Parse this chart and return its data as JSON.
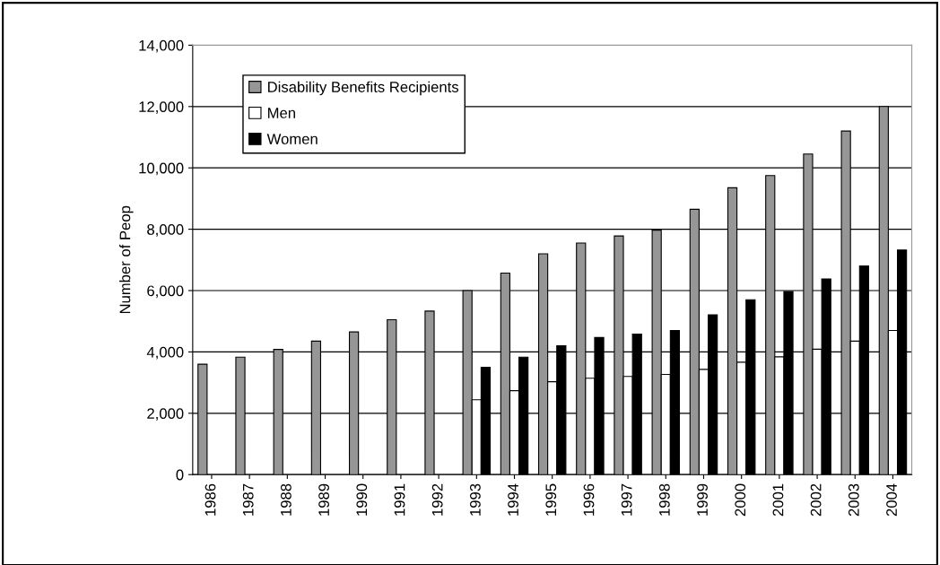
{
  "chart_data": {
    "type": "bar",
    "ylabel": "Number of Peop",
    "categories": [
      "1986",
      "1987",
      "1988",
      "1989",
      "1990",
      "1991",
      "1992",
      "1993",
      "1994",
      "1995",
      "1996",
      "1997",
      "1998",
      "1999",
      "2000",
      "2001",
      "2002",
      "2003",
      "2004"
    ],
    "series": [
      {
        "name": "Disability Benefits Recipients",
        "color": "#969696",
        "values": [
          3600,
          3830,
          4080,
          4350,
          4650,
          5050,
          5330,
          6000,
          6570,
          7200,
          7550,
          7780,
          7970,
          8650,
          9350,
          9750,
          10450,
          11200,
          12000
        ]
      },
      {
        "name": "Men",
        "color": "#ffffff",
        "values": [
          null,
          null,
          null,
          null,
          null,
          null,
          null,
          2440,
          2735,
          3030,
          3140,
          3200,
          3265,
          3430,
          3665,
          3840,
          4090,
          4350,
          4700
        ]
      },
      {
        "name": "Women",
        "color": "#000000",
        "values": [
          null,
          null,
          null,
          null,
          null,
          null,
          null,
          3500,
          3830,
          4200,
          4470,
          4580,
          4700,
          5210,
          5700,
          5970,
          6380,
          6800,
          7320
        ]
      }
    ],
    "ylim": [
      0,
      14000
    ],
    "yticks": [
      {
        "value": 0,
        "label": "0"
      },
      {
        "value": 2000,
        "label": "2,000"
      },
      {
        "value": 4000,
        "label": "4,000"
      },
      {
        "value": 6000,
        "label": "6,000"
      },
      {
        "value": 8000,
        "label": "8,000"
      },
      {
        "value": 10000,
        "label": "10,000"
      },
      {
        "value": 12000,
        "label": "12,000"
      },
      {
        "value": 14000,
        "label": "14,000"
      }
    ],
    "grid": "y",
    "legend": "top left"
  }
}
